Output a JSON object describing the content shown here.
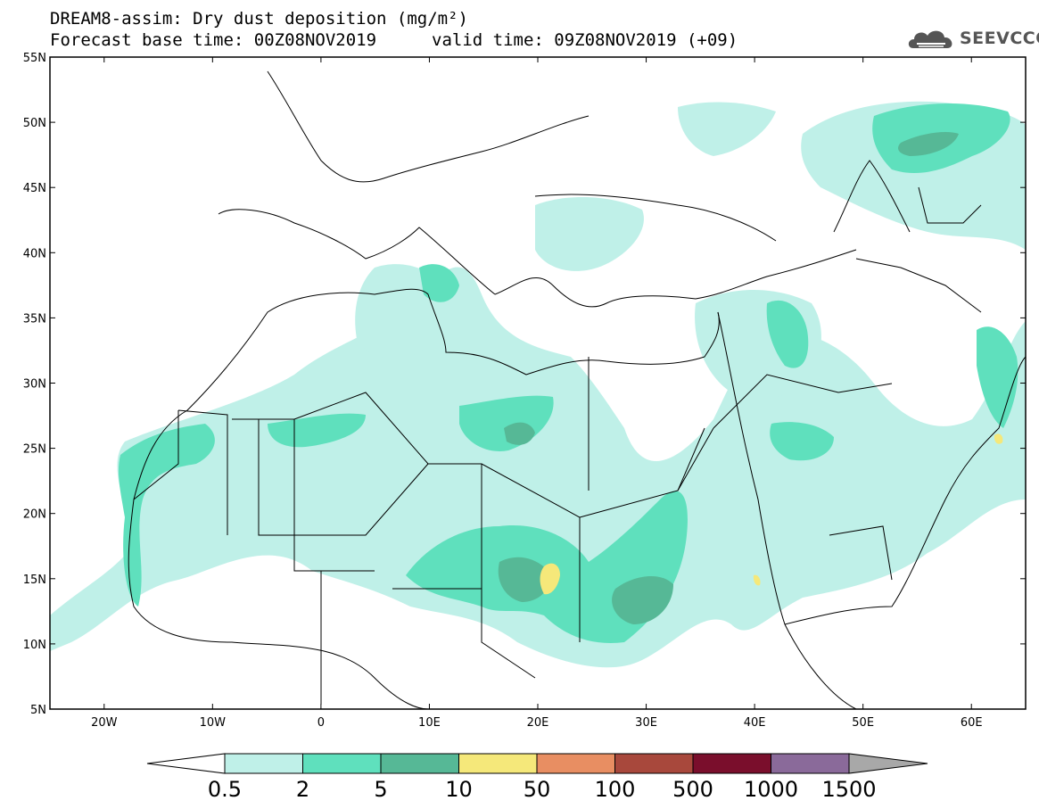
{
  "header": {
    "title_line1": "DREAM8-assim: Dry dust deposition (mg/m²)",
    "title_line2": "Forecast base time: 00Z08NOV2019",
    "valid_time": "valid time: 09Z08NOV2019 (+09)"
  },
  "logo": {
    "text": "SEEVCCC",
    "icon": "cloud-logo-icon"
  },
  "map": {
    "lon_range": [
      -25,
      65
    ],
    "lat_range": [
      5,
      55
    ],
    "lat_ticks": [
      {
        "value": 55,
        "label": "55N"
      },
      {
        "value": 50,
        "label": "50N"
      },
      {
        "value": 45,
        "label": "45N"
      },
      {
        "value": 40,
        "label": "40N"
      },
      {
        "value": 35,
        "label": "35N"
      },
      {
        "value": 30,
        "label": "30N"
      },
      {
        "value": 25,
        "label": "25N"
      },
      {
        "value": 20,
        "label": "20N"
      },
      {
        "value": 15,
        "label": "15N"
      },
      {
        "value": 10,
        "label": "10N"
      },
      {
        "value": 5,
        "label": "5N"
      }
    ],
    "lon_ticks": [
      {
        "value": -20,
        "label": "20W"
      },
      {
        "value": -10,
        "label": "10W"
      },
      {
        "value": 0,
        "label": "0"
      },
      {
        "value": 10,
        "label": "10E"
      },
      {
        "value": 20,
        "label": "20E"
      },
      {
        "value": 30,
        "label": "30E"
      },
      {
        "value": 40,
        "label": "40E"
      },
      {
        "value": 50,
        "label": "50E"
      },
      {
        "value": 60,
        "label": "60E"
      }
    ]
  },
  "colorbar": {
    "levels": [
      "0.5",
      "2",
      "5",
      "10",
      "50",
      "100",
      "500",
      "1000",
      "1500"
    ],
    "colors": [
      "#bff0e8",
      "#5fe0bd",
      "#56b896",
      "#f5e87a",
      "#e88e62",
      "#a8483c",
      "#7a0e2c",
      "#8a6a9a"
    ],
    "under_color": "#ffffff",
    "over_color": "#a8a8a8"
  },
  "colors": {
    "land_low": "#bff0e8",
    "land_mid": "#5fe0bd",
    "land_high": "#56b896",
    "hot": "#f5e87a",
    "border": "#000000"
  }
}
